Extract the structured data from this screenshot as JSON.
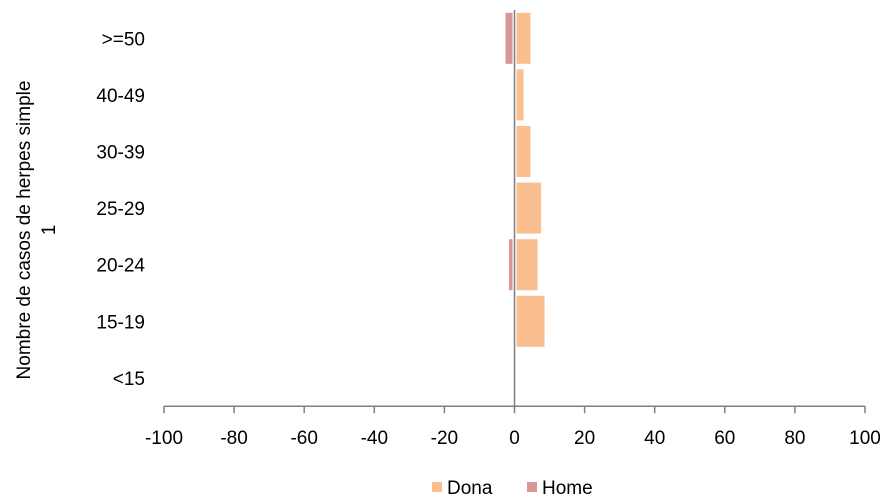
{
  "chart_data": {
    "type": "bar",
    "orientation": "horizontal",
    "categories": [
      ">=50",
      "40-49",
      "30-39",
      "25-29",
      "20-24",
      "15-19",
      "<15"
    ],
    "series": [
      {
        "name": "Dona",
        "color": "#f9bf8f",
        "values": [
          4,
          2,
          4,
          7,
          6,
          8,
          0
        ]
      },
      {
        "name": "Home",
        "color": "#d99694",
        "values": [
          -2,
          0,
          0,
          0,
          -1,
          0,
          0
        ]
      }
    ],
    "xlim": [
      -100,
      100
    ],
    "xticks": [
      "-100",
      "-80",
      "-60",
      "-40",
      "-20",
      "0",
      "20",
      "40",
      "60",
      "80",
      "100"
    ],
    "ylabel_lines": [
      "Nombre de casos de herpes simple",
      "1"
    ],
    "grid": false,
    "legend_position": "bottom"
  }
}
